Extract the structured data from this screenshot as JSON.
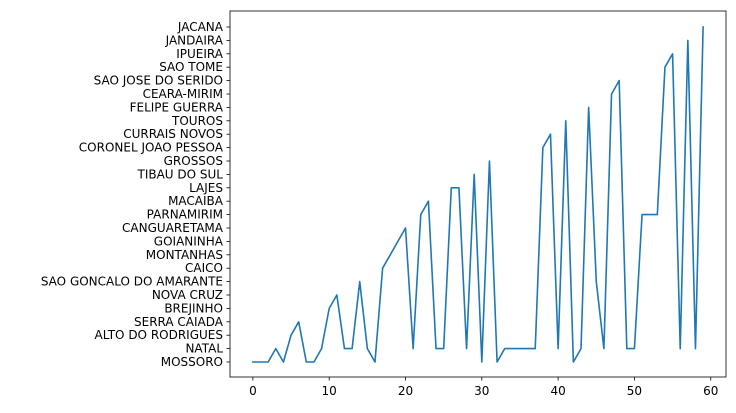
{
  "chart_data": {
    "type": "line",
    "title": "",
    "xlabel": "",
    "ylabel": "",
    "xlim": [
      -3,
      62
    ],
    "xticks": [
      0,
      10,
      20,
      30,
      40,
      50,
      60
    ],
    "grid": false,
    "legend": "none",
    "y_categories": [
      "MOSSORO",
      "NATAL",
      "ALTO DO RODRIGUES",
      "SERRA CAIADA",
      "BREJINHO",
      "NOVA CRUZ",
      "SAO GONCALO DO AMARANTE",
      "CAICO",
      "MONTANHAS",
      "GOIANINHA",
      "CANGUARETAMA",
      "PARNAMIRIM",
      "MACAIBA",
      "LAJES",
      "TIBAU DO SUL",
      "GROSSOS",
      "CORONEL JOAO PESSOA",
      "CURRAIS NOVOS",
      "TOUROS",
      "FELIPE GUERRA",
      "CEARA-MIRIM",
      "SAO JOSE DO SERIDO",
      "SAO TOME",
      "IPUEIRA",
      "JANDAIRA",
      "JACANA"
    ],
    "series": [
      {
        "color": "#1f77b4",
        "x": [
          0,
          1,
          2,
          3,
          4,
          5,
          6,
          7,
          8,
          9,
          10,
          11,
          12,
          13,
          14,
          15,
          16,
          17,
          18,
          19,
          20,
          21,
          22,
          23,
          24,
          25,
          26,
          27,
          28,
          29,
          30,
          31,
          32,
          33,
          34,
          35,
          36,
          37,
          38,
          39,
          40,
          41,
          42,
          43,
          44,
          45,
          46,
          47,
          48,
          49,
          50,
          51,
          52,
          53,
          54,
          55,
          56,
          57,
          58,
          59
        ],
        "y": [
          "MOSSORO",
          "MOSSORO",
          "MOSSORO",
          "NATAL",
          "MOSSORO",
          "ALTO DO RODRIGUES",
          "SERRA CAIADA",
          "MOSSORO",
          "MOSSORO",
          "NATAL",
          "BREJINHO",
          "NOVA CRUZ",
          "NATAL",
          "NATAL",
          "SAO GONCALO DO AMARANTE",
          "NATAL",
          "MOSSORO",
          "CAICO",
          "MONTANHAS",
          "GOIANINHA",
          "CANGUARETAMA",
          "NATAL",
          "PARNAMIRIM",
          "MACAIBA",
          "NATAL",
          "NATAL",
          "LAJES",
          "LAJES",
          "NATAL",
          "TIBAU DO SUL",
          "MOSSORO",
          "GROSSOS",
          "MOSSORO",
          "NATAL",
          "NATAL",
          "NATAL",
          "NATAL",
          "NATAL",
          "CORONEL JOAO PESSOA",
          "CURRAIS NOVOS",
          "NATAL",
          "TOUROS",
          "MOSSORO",
          "NATAL",
          "FELIPE GUERRA",
          "SAO GONCALO DO AMARANTE",
          "NATAL",
          "CEARA-MIRIM",
          "SAO JOSE DO SERIDO",
          "NATAL",
          "NATAL",
          "PARNAMIRIM",
          "PARNAMIRIM",
          "PARNAMIRIM",
          "SAO TOME",
          "IPUEIRA",
          "NATAL",
          "JANDAIRA",
          "NATAL",
          "JACANA"
        ]
      }
    ]
  }
}
